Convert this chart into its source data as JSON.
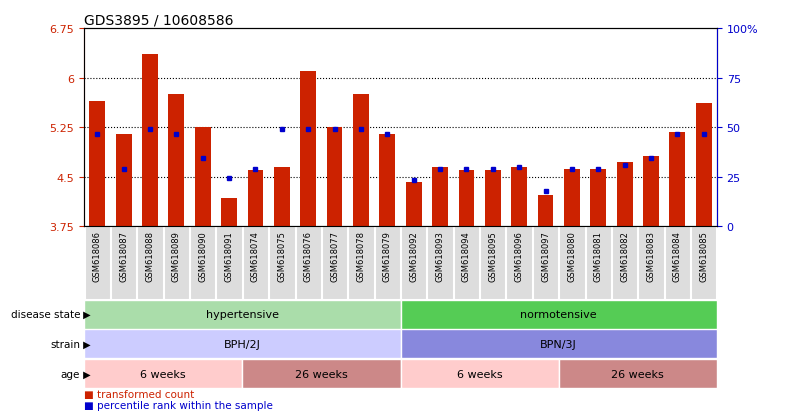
{
  "title": "GDS3895 / 10608586",
  "samples": [
    "GSM618086",
    "GSM618087",
    "GSM618088",
    "GSM618089",
    "GSM618090",
    "GSM618091",
    "GSM618074",
    "GSM618075",
    "GSM618076",
    "GSM618077",
    "GSM618078",
    "GSM618079",
    "GSM618092",
    "GSM618093",
    "GSM618094",
    "GSM618095",
    "GSM618096",
    "GSM618097",
    "GSM618080",
    "GSM618081",
    "GSM618082",
    "GSM618083",
    "GSM618084",
    "GSM618085"
  ],
  "bar_values": [
    5.65,
    5.15,
    6.35,
    5.75,
    5.25,
    4.18,
    4.6,
    4.65,
    6.1,
    5.25,
    5.75,
    5.15,
    4.42,
    4.65,
    4.6,
    4.6,
    4.65,
    4.22,
    4.62,
    4.62,
    4.72,
    4.82,
    5.18,
    5.62
  ],
  "percentile_values": [
    5.15,
    4.62,
    5.22,
    5.15,
    4.78,
    4.48,
    4.62,
    5.22,
    5.22,
    5.22,
    5.22,
    5.15,
    4.45,
    4.62,
    4.62,
    4.62,
    4.65,
    4.28,
    4.62,
    4.62,
    4.68,
    4.78,
    5.15,
    5.15
  ],
  "y_min": 3.75,
  "y_max": 6.75,
  "y_ticks": [
    3.75,
    4.5,
    5.25,
    6.0,
    6.75
  ],
  "y_ticklabels": [
    "3.75",
    "4.5",
    "5.25",
    "6",
    "6.75"
  ],
  "right_y_ticks": [
    0,
    25,
    50,
    75,
    100
  ],
  "right_y_ticklabels": [
    "0",
    "25",
    "50",
    "75",
    "100%"
  ],
  "bar_color": "#CC2200",
  "percentile_color": "#0000CC",
  "bg_color": "#FFFFFF",
  "disease_state_groups": [
    {
      "label": "hypertensive",
      "start": 0,
      "end": 12,
      "color": "#AADDAA"
    },
    {
      "label": "normotensive",
      "start": 12,
      "end": 24,
      "color": "#55CC55"
    }
  ],
  "strain_groups": [
    {
      "label": "BPH/2J",
      "start": 0,
      "end": 12,
      "color": "#CCCCFF"
    },
    {
      "label": "BPN/3J",
      "start": 12,
      "end": 24,
      "color": "#8888DD"
    }
  ],
  "age_groups": [
    {
      "label": "6 weeks",
      "start": 0,
      "end": 6,
      "color": "#FFCCCC"
    },
    {
      "label": "26 weeks",
      "start": 6,
      "end": 12,
      "color": "#CC8888"
    },
    {
      "label": "6 weeks",
      "start": 12,
      "end": 18,
      "color": "#FFCCCC"
    },
    {
      "label": "26 weeks",
      "start": 18,
      "end": 24,
      "color": "#CC8888"
    }
  ],
  "row_labels": [
    "disease state",
    "strain",
    "age"
  ],
  "legend_items": [
    {
      "label": "transformed count",
      "color": "#CC2200"
    },
    {
      "label": "percentile rank within the sample",
      "color": "#0000CC"
    }
  ]
}
